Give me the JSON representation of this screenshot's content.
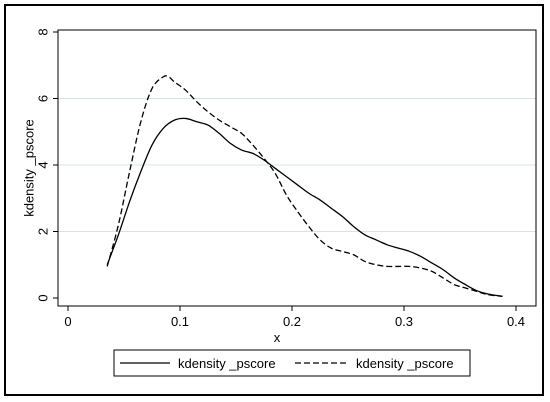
{
  "chart_data": {
    "type": "line",
    "xlabel": "x",
    "ylabel": "kdensity _pscore",
    "xlim": [
      0,
      0.4
    ],
    "ylim": [
      0,
      8
    ],
    "xticks": [
      0,
      0.1,
      0.2,
      0.3,
      0.4
    ],
    "xtick_labels": [
      "0",
      "0.1",
      "0.2",
      "0.3",
      "0.4"
    ],
    "yticks": [
      0,
      2,
      4,
      6,
      8
    ],
    "ytick_labels": [
      "0",
      "2",
      "4",
      "6",
      "8"
    ],
    "grid": "horizontal",
    "legend_position": "bottom",
    "colors": {
      "grid": "#d4e4ea",
      "line": "#000000"
    },
    "series": [
      {
        "name": "kdensity _pscore",
        "style": "solid",
        "x": [
          0.035,
          0.045,
          0.055,
          0.065,
          0.075,
          0.085,
          0.095,
          0.105,
          0.115,
          0.125,
          0.135,
          0.145,
          0.155,
          0.165,
          0.175,
          0.185,
          0.195,
          0.205,
          0.215,
          0.225,
          0.235,
          0.245,
          0.255,
          0.265,
          0.275,
          0.285,
          0.295,
          0.305,
          0.315,
          0.325,
          0.335,
          0.345,
          0.355,
          0.365,
          0.375,
          0.388
        ],
        "y": [
          1.0,
          1.9,
          2.9,
          3.8,
          4.6,
          5.1,
          5.35,
          5.4,
          5.3,
          5.2,
          4.95,
          4.65,
          4.45,
          4.35,
          4.15,
          3.9,
          3.65,
          3.4,
          3.15,
          2.95,
          2.7,
          2.45,
          2.15,
          1.9,
          1.75,
          1.6,
          1.5,
          1.4,
          1.25,
          1.05,
          0.85,
          0.6,
          0.4,
          0.22,
          0.12,
          0.05
        ]
      },
      {
        "name": "kdensity _pscore",
        "style": "dashed",
        "x": [
          0.035,
          0.045,
          0.055,
          0.065,
          0.075,
          0.085,
          0.09,
          0.095,
          0.105,
          0.115,
          0.125,
          0.135,
          0.145,
          0.155,
          0.165,
          0.175,
          0.185,
          0.195,
          0.205,
          0.215,
          0.225,
          0.235,
          0.245,
          0.255,
          0.265,
          0.275,
          0.285,
          0.295,
          0.305,
          0.315,
          0.325,
          0.335,
          0.345,
          0.355,
          0.365,
          0.375,
          0.388
        ],
        "y": [
          0.95,
          2.2,
          3.8,
          5.3,
          6.3,
          6.65,
          6.65,
          6.5,
          6.25,
          5.9,
          5.6,
          5.35,
          5.15,
          4.95,
          4.6,
          4.2,
          3.75,
          3.1,
          2.6,
          2.15,
          1.75,
          1.5,
          1.4,
          1.3,
          1.1,
          1.0,
          0.95,
          0.95,
          0.95,
          0.9,
          0.8,
          0.6,
          0.4,
          0.3,
          0.2,
          0.1,
          0.05
        ]
      }
    ]
  }
}
